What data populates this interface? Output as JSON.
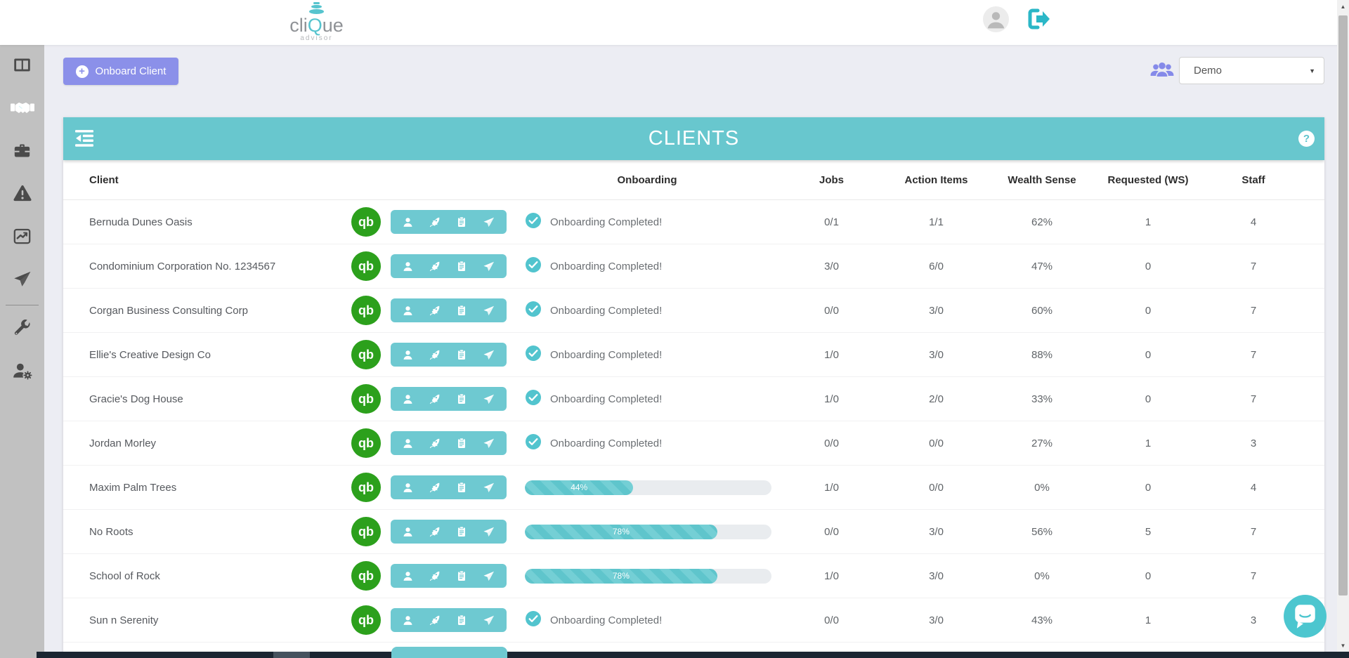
{
  "header": {
    "logo": {
      "part1": "cli",
      "part2": "Q",
      "part3": "ue",
      "tagline": "advisor"
    }
  },
  "sidebar": {
    "items": [
      {
        "id": "dashboard",
        "icon": "columns-icon",
        "active": false
      },
      {
        "id": "clients",
        "icon": "handshake-icon",
        "active": true
      },
      {
        "id": "jobs",
        "icon": "toolbox-icon",
        "active": false
      },
      {
        "id": "alerts",
        "icon": "warning-icon",
        "active": false
      },
      {
        "id": "reports",
        "icon": "chart-line-icon",
        "active": false
      },
      {
        "id": "send",
        "icon": "paper-plane-icon",
        "active": false
      },
      {
        "id": "tools",
        "icon": "wrench-icon",
        "active": false
      },
      {
        "id": "user-settings",
        "icon": "user-gear-icon",
        "active": false
      }
    ]
  },
  "toolbar": {
    "onboard_client_label": "Onboard Client",
    "client_group_value": "Demo"
  },
  "clients_panel": {
    "title": "CLIENTS",
    "columns": [
      "Client",
      "Onboarding",
      "Jobs",
      "Action Items",
      "Wealth Sense",
      "Requested (WS)",
      "Staff"
    ],
    "completed_text": "Onboarding Completed!",
    "rows": [
      {
        "client": "Bernuda Dunes Oasis",
        "onboarding": {
          "status": "complete"
        },
        "jobs": "0/1",
        "action_items": "1/1",
        "wealth_sense": "62%",
        "requested_ws": "1",
        "staff": "4"
      },
      {
        "client": "Condominium Corporation No. 1234567",
        "onboarding": {
          "status": "complete"
        },
        "jobs": "3/0",
        "action_items": "6/0",
        "wealth_sense": "47%",
        "requested_ws": "0",
        "staff": "7"
      },
      {
        "client": "Corgan Business Consulting Corp",
        "onboarding": {
          "status": "complete"
        },
        "jobs": "0/0",
        "action_items": "3/0",
        "wealth_sense": "60%",
        "requested_ws": "0",
        "staff": "7"
      },
      {
        "client": "Ellie's Creative Design Co",
        "onboarding": {
          "status": "complete"
        },
        "jobs": "1/0",
        "action_items": "3/0",
        "wealth_sense": "88%",
        "requested_ws": "0",
        "staff": "7"
      },
      {
        "client": "Gracie's Dog House",
        "onboarding": {
          "status": "complete"
        },
        "jobs": "1/0",
        "action_items": "2/0",
        "wealth_sense": "33%",
        "requested_ws": "0",
        "staff": "7"
      },
      {
        "client": "Jordan Morley",
        "onboarding": {
          "status": "complete"
        },
        "jobs": "0/0",
        "action_items": "0/0",
        "wealth_sense": "27%",
        "requested_ws": "1",
        "staff": "3"
      },
      {
        "client": "Maxim Palm Trees",
        "onboarding": {
          "status": "in_progress",
          "percent": 44,
          "label": "44%"
        },
        "jobs": "1/0",
        "action_items": "0/0",
        "wealth_sense": "0%",
        "requested_ws": "0",
        "staff": "4"
      },
      {
        "client": "No Roots",
        "onboarding": {
          "status": "in_progress",
          "percent": 78,
          "label": "78%"
        },
        "jobs": "0/0",
        "action_items": "3/0",
        "wealth_sense": "56%",
        "requested_ws": "5",
        "staff": "7"
      },
      {
        "client": "School of Rock",
        "onboarding": {
          "status": "in_progress",
          "percent": 78,
          "label": "78%"
        },
        "jobs": "1/0",
        "action_items": "3/0",
        "wealth_sense": "0%",
        "requested_ws": "0",
        "staff": "7"
      },
      {
        "client": "Sun n Serenity",
        "onboarding": {
          "status": "complete"
        },
        "jobs": "0/0",
        "action_items": "3/0",
        "wealth_sense": "43%",
        "requested_ws": "1",
        "staff": "3"
      }
    ]
  },
  "icons": {
    "plus": "+",
    "help": "?",
    "qb": "qb",
    "caret_down": "▼",
    "scroll_up": "▲",
    "scroll_down": "▼"
  },
  "colors": {
    "teal": "#68c7ce",
    "purple": "#8b90e9",
    "qb_green": "#2ca01c",
    "sidebar_gray": "#c1c1c1",
    "dark_bar": "#1b2632"
  }
}
